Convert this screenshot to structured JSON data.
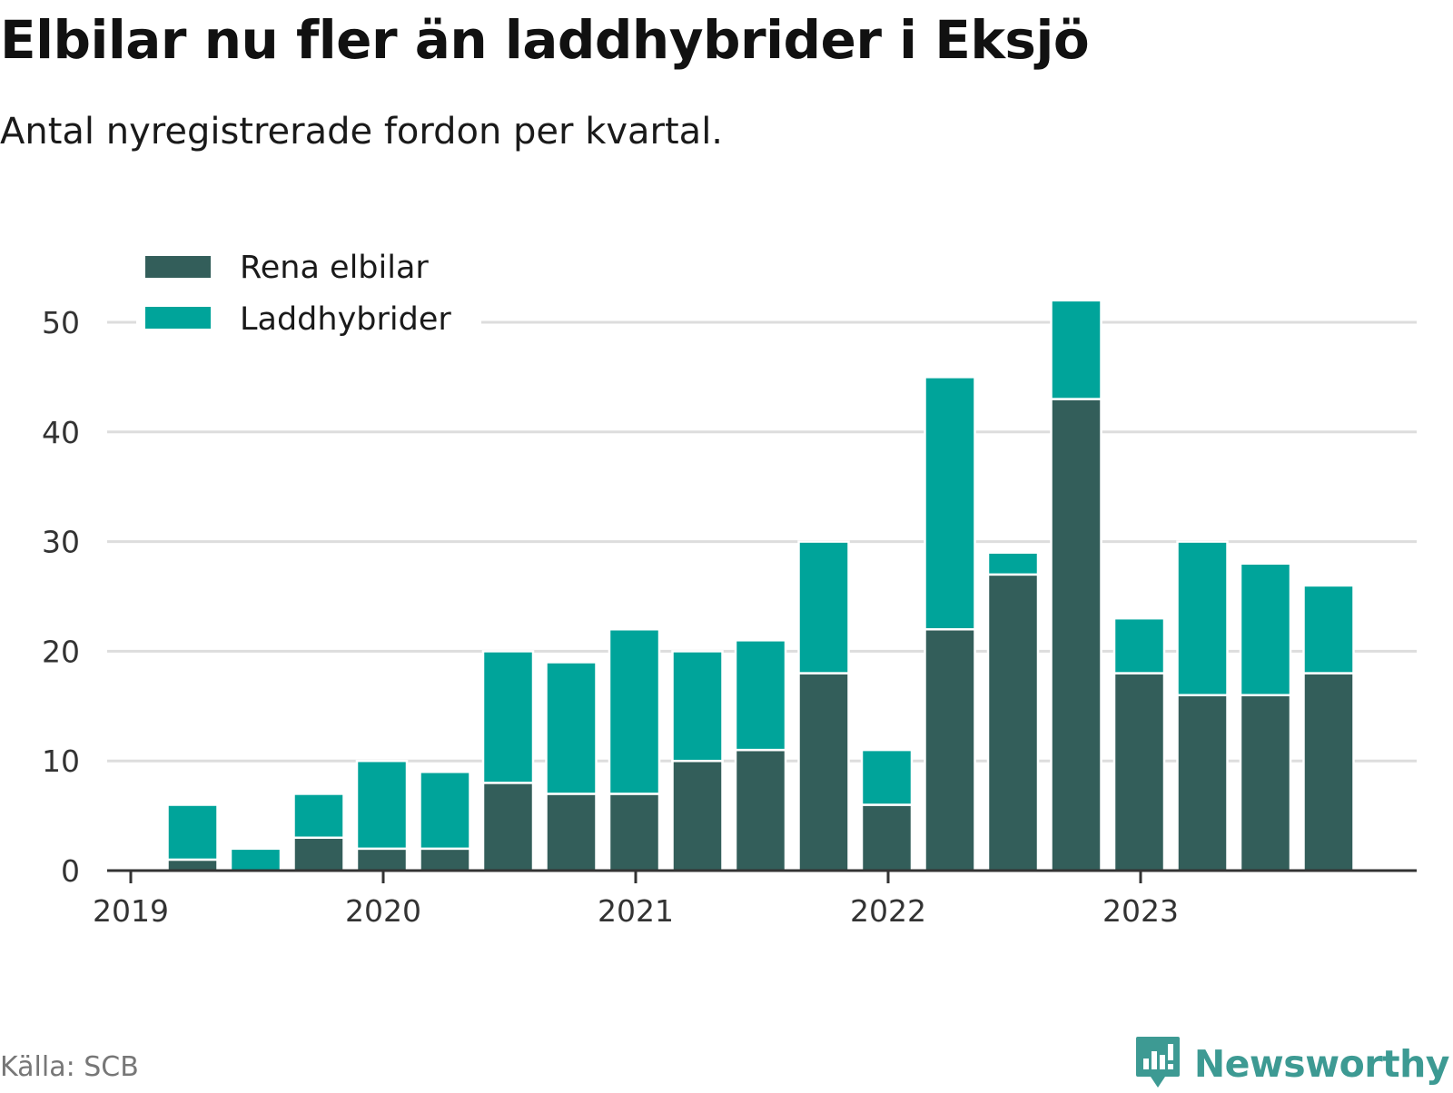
{
  "title": "Elbilar nu fler än laddhybrider i Eksjö",
  "subtitle": "Antal nyregistrerade fordon per kvartal.",
  "source": "Källa: SCB",
  "brand": {
    "name": "Newsworthy",
    "icon": "newsworthy-logo-icon",
    "color": "#3d9a93"
  },
  "chart_data": {
    "type": "bar",
    "stacked": true,
    "title": "Elbilar nu fler än laddhybrider i Eksjö",
    "subtitle": "Antal nyregistrerade fordon per kvartal.",
    "xlabel": "",
    "ylabel": "",
    "ylim": [
      0,
      55
    ],
    "yticks": [
      0,
      10,
      20,
      30,
      40,
      50
    ],
    "xticks": [
      "2019",
      "2020",
      "2021",
      "2022",
      "2023"
    ],
    "grid": true,
    "legend_position": "top-left",
    "categories": [
      "2019 Q2",
      "2019 Q3",
      "2019 Q4",
      "2020 Q1",
      "2020 Q2",
      "2020 Q3",
      "2020 Q4",
      "2021 Q1",
      "2021 Q2",
      "2021 Q3",
      "2021 Q4",
      "2022 Q1",
      "2022 Q2",
      "2022 Q3",
      "2022 Q4",
      "2023 Q1",
      "2023 Q2",
      "2023 Q3",
      "2023 Q4"
    ],
    "series": [
      {
        "name": "Rena elbilar",
        "color": "#335e5a",
        "values": [
          1,
          0,
          3,
          2,
          2,
          8,
          7,
          7,
          10,
          11,
          18,
          6,
          22,
          27,
          43,
          18,
          16,
          16,
          18
        ]
      },
      {
        "name": "Laddhybrider",
        "color": "#00a49a",
        "values": [
          5,
          2,
          4,
          8,
          7,
          12,
          12,
          15,
          10,
          10,
          12,
          5,
          23,
          2,
          9,
          5,
          14,
          12,
          8
        ]
      }
    ]
  }
}
